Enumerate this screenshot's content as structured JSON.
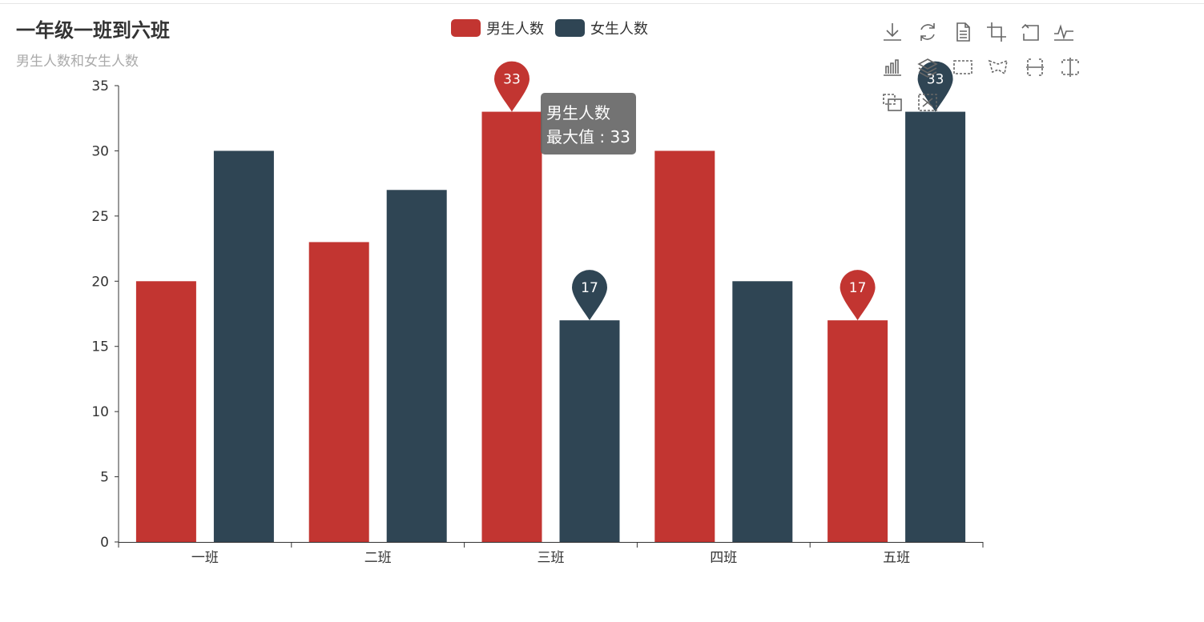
{
  "title": "一年级一班到六班",
  "subtitle": "男生人数和女生人数",
  "legend": [
    {
      "name": "男生人数",
      "color": "#c23531"
    },
    {
      "name": "女生人数",
      "color": "#2f4554"
    }
  ],
  "toolbox": {
    "icons": [
      "download-icon",
      "refresh-icon",
      "data-view-icon",
      "crop-icon",
      "undo-icon",
      "line-chart-icon",
      "bar-chart-icon",
      "stack-icon",
      "rect-select-icon",
      "polygon-select-icon",
      "horizontal-select-icon",
      "free-select-icon",
      "keep-select-icon",
      "clear-select-icon"
    ]
  },
  "tooltip": {
    "series": "男生人数",
    "line": "最大值 : 33"
  },
  "chart_data": {
    "type": "bar",
    "categories": [
      "一班",
      "二班",
      "三班",
      "四班",
      "五班"
    ],
    "series": [
      {
        "name": "男生人数",
        "color": "#c23531",
        "values": [
          20,
          23,
          33,
          30,
          17
        ]
      },
      {
        "name": "女生人数",
        "color": "#2f4554",
        "values": [
          30,
          27,
          17,
          20,
          33
        ]
      }
    ],
    "ylim": [
      0,
      35
    ],
    "yticks": [
      0,
      5,
      10,
      15,
      20,
      25,
      30,
      35
    ],
    "markers": [
      {
        "series": 0,
        "category": 2,
        "value": 33,
        "label": "33"
      },
      {
        "series": 0,
        "category": 4,
        "value": 17,
        "label": "17"
      },
      {
        "series": 1,
        "category": 2,
        "value": 17,
        "label": "17"
      },
      {
        "series": 1,
        "category": 4,
        "value": 33,
        "label": "33"
      }
    ]
  }
}
